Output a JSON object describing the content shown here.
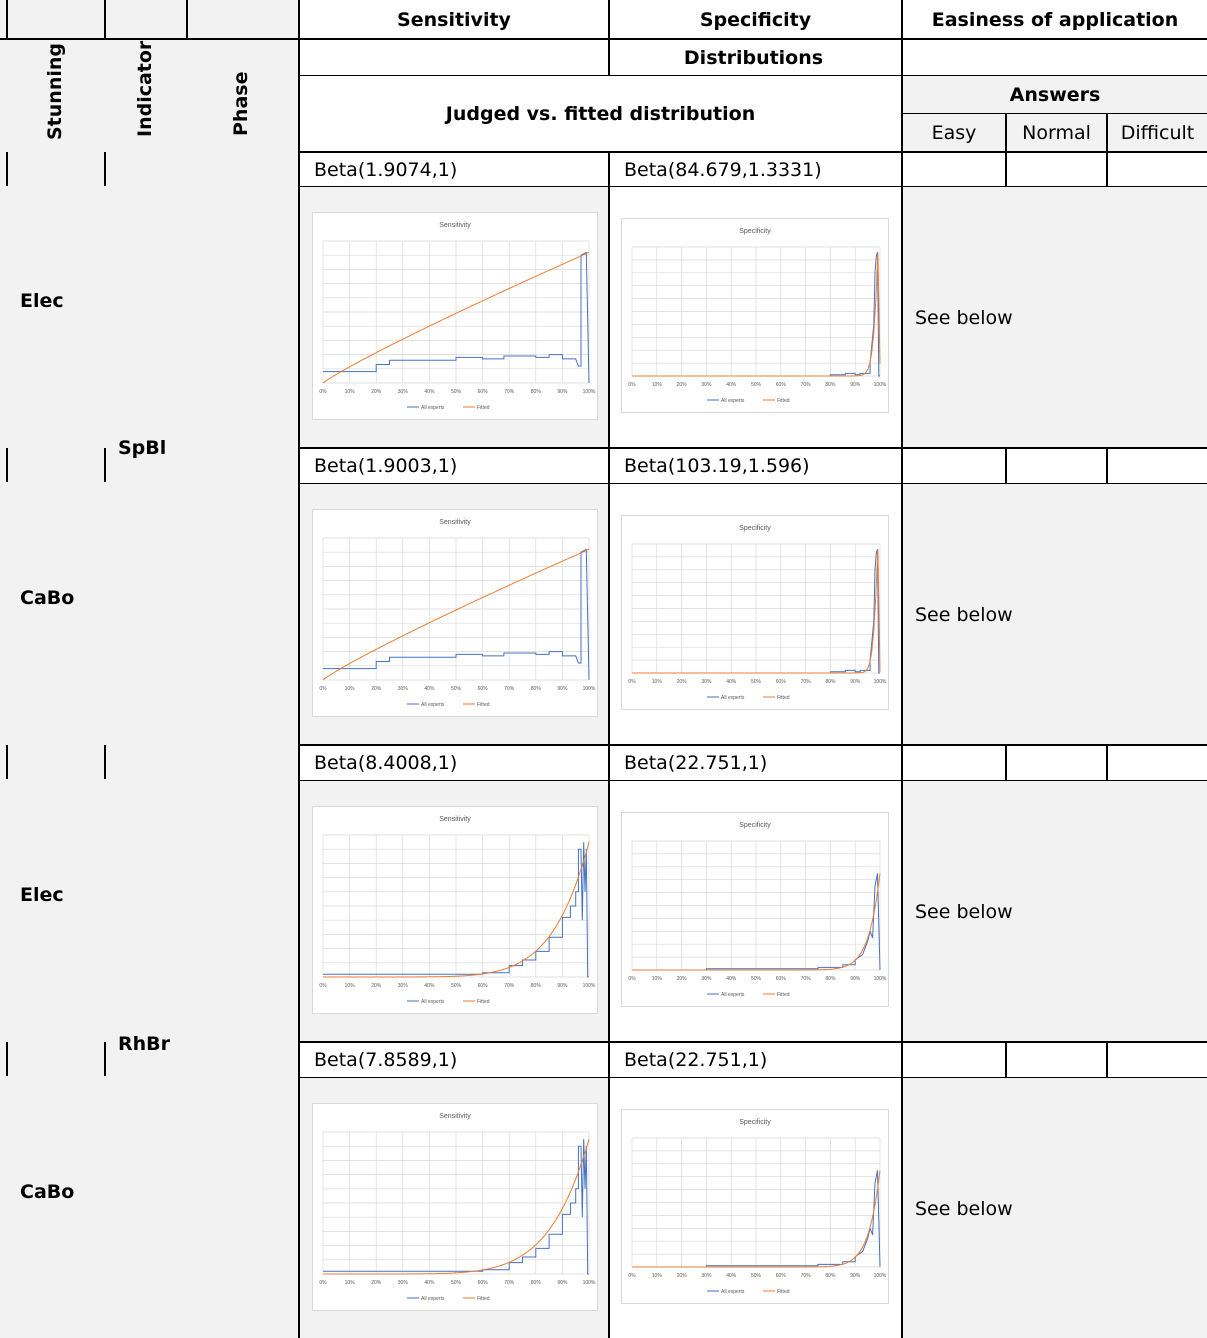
{
  "header": {
    "col1": "Stunning",
    "col2": "Indicator",
    "col3": "Phase",
    "sensitivity": "Sensitivity",
    "specificity": "Specificity",
    "easiness": "Easiness of application",
    "distributions": "Distributions",
    "judged_vs_fitted": "Judged vs. fitted distribution",
    "answers": "Answers",
    "easy": "Easy",
    "normal": "Normal",
    "difficult": "Difficult"
  },
  "rows": [
    {
      "indicator": "SpBl",
      "stunning": "Elec",
      "sens_dist": "Beta(1.9074,1)",
      "spec_dist": "Beta(84.679,1.3331)",
      "answer": "See below"
    },
    {
      "indicator": "",
      "stunning": "CaBo",
      "sens_dist": "Beta(1.9003,1)",
      "spec_dist": "Beta(103.19,1.596)",
      "answer": "See below"
    },
    {
      "indicator": "RhBr",
      "stunning": "Elec",
      "sens_dist": "Beta(8.4008,1)",
      "spec_dist": "Beta(22.751,1)",
      "answer": "See below"
    },
    {
      "indicator": "",
      "stunning": "CaBo",
      "sens_dist": "Beta(7.8589,1)",
      "spec_dist": "Beta(22.751,1)",
      "answer": "See below"
    }
  ],
  "colors": {
    "all_experts": "#4472c4",
    "fitted": "#ed7d31",
    "grid": "#d9d9d9",
    "shade": "#f2f2f2"
  },
  "chart_data": [
    {
      "type": "line",
      "title": "Sensitivity",
      "x_ticks": [
        "0%",
        "10%",
        "20%",
        "30%",
        "40%",
        "50%",
        "60%",
        "70%",
        "80%",
        "90%",
        "100%"
      ],
      "legend": [
        "All experts",
        "Fitted"
      ],
      "legend_position": "bottom",
      "grid": true,
      "series": [
        {
          "name": "All experts",
          "x": [
            0,
            0.1,
            0.2,
            0.2,
            0.25,
            0.25,
            0.4,
            0.5,
            0.5,
            0.6,
            0.6,
            0.68,
            0.68,
            0.8,
            0.8,
            0.85,
            0.85,
            0.9,
            0.9,
            0.95,
            0.96,
            0.97,
            0.97,
            0.99,
            0.99,
            1.0
          ],
          "y": [
            0.08,
            0.08,
            0.08,
            0.13,
            0.13,
            0.16,
            0.16,
            0.16,
            0.18,
            0.18,
            0.17,
            0.17,
            0.19,
            0.19,
            0.18,
            0.18,
            0.2,
            0.2,
            0.17,
            0.17,
            0.12,
            0.12,
            0.9,
            0.92,
            0.92,
            0.0
          ]
        },
        {
          "name": "Fitted",
          "function": "beta",
          "a": 1.9074,
          "b": 1
        }
      ]
    },
    {
      "type": "line",
      "title": "Specificity",
      "x_ticks": [
        "0%",
        "10%",
        "20%",
        "30%",
        "40%",
        "50%",
        "60%",
        "70%",
        "80%",
        "90%",
        "100%"
      ],
      "legend": [
        "All experts",
        "Fitted"
      ],
      "legend_position": "bottom",
      "grid": true,
      "series": [
        {
          "name": "All experts",
          "x": [
            0,
            0.8,
            0.8,
            0.86,
            0.86,
            0.9,
            0.9,
            0.92,
            0.92,
            0.96,
            0.96,
            0.975,
            0.98,
            0.985,
            0.99,
            0.995,
            1.0
          ],
          "y": [
            0.0,
            0.0,
            0.01,
            0.01,
            0.02,
            0.02,
            0.01,
            0.01,
            0.02,
            0.02,
            0.1,
            0.4,
            0.8,
            0.93,
            0.96,
            0.0,
            0.0
          ]
        },
        {
          "name": "Fitted",
          "function": "beta",
          "a": 84.679,
          "b": 1.3331
        }
      ]
    },
    {
      "type": "line",
      "title": "Sensitivity",
      "x_ticks": [
        "0%",
        "10%",
        "20%",
        "30%",
        "40%",
        "50%",
        "60%",
        "70%",
        "80%",
        "90%",
        "100%"
      ],
      "legend": [
        "All experts",
        "Fitted"
      ],
      "legend_position": "bottom",
      "grid": true,
      "series": [
        {
          "name": "All experts",
          "x": [
            0,
            0.1,
            0.2,
            0.2,
            0.25,
            0.25,
            0.4,
            0.5,
            0.5,
            0.6,
            0.6,
            0.68,
            0.68,
            0.8,
            0.8,
            0.85,
            0.85,
            0.9,
            0.9,
            0.95,
            0.96,
            0.97,
            0.97,
            0.99,
            0.99,
            1.0
          ],
          "y": [
            0.08,
            0.08,
            0.08,
            0.13,
            0.13,
            0.16,
            0.16,
            0.16,
            0.18,
            0.18,
            0.17,
            0.17,
            0.19,
            0.19,
            0.18,
            0.18,
            0.2,
            0.2,
            0.17,
            0.17,
            0.12,
            0.12,
            0.9,
            0.92,
            0.92,
            0.0
          ]
        },
        {
          "name": "Fitted",
          "function": "beta",
          "a": 1.9003,
          "b": 1
        }
      ]
    },
    {
      "type": "line",
      "title": "Specificity",
      "x_ticks": [
        "0%",
        "10%",
        "20%",
        "30%",
        "40%",
        "50%",
        "60%",
        "70%",
        "80%",
        "90%",
        "100%"
      ],
      "legend": [
        "All experts",
        "Fitted"
      ],
      "legend_position": "bottom",
      "grid": true,
      "series": [
        {
          "name": "All experts",
          "x": [
            0,
            0.8,
            0.8,
            0.86,
            0.86,
            0.9,
            0.9,
            0.92,
            0.92,
            0.96,
            0.96,
            0.975,
            0.98,
            0.985,
            0.99,
            0.995,
            1.0
          ],
          "y": [
            0.0,
            0.0,
            0.01,
            0.01,
            0.02,
            0.02,
            0.01,
            0.01,
            0.02,
            0.02,
            0.1,
            0.4,
            0.8,
            0.93,
            0.96,
            0.0,
            0.0
          ]
        },
        {
          "name": "Fitted",
          "function": "beta",
          "a": 103.19,
          "b": 1.596
        }
      ]
    },
    {
      "type": "line",
      "title": "Sensitivity",
      "x_ticks": [
        "0%",
        "10%",
        "20%",
        "30%",
        "40%",
        "50%",
        "60%",
        "70%",
        "80%",
        "90%",
        "100%"
      ],
      "legend": [
        "All experts",
        "Fitted"
      ],
      "legend_position": "bottom",
      "grid": true,
      "series": [
        {
          "name": "All experts",
          "x": [
            0,
            0.6,
            0.6,
            0.7,
            0.7,
            0.75,
            0.75,
            0.8,
            0.8,
            0.85,
            0.85,
            0.9,
            0.9,
            0.93,
            0.93,
            0.95,
            0.95,
            0.96,
            0.96,
            0.97,
            0.975,
            0.98,
            0.985,
            0.99,
            0.995,
            1.0
          ],
          "y": [
            0.02,
            0.02,
            0.03,
            0.03,
            0.08,
            0.08,
            0.12,
            0.12,
            0.18,
            0.18,
            0.28,
            0.28,
            0.42,
            0.42,
            0.5,
            0.5,
            0.6,
            0.6,
            0.9,
            0.9,
            0.4,
            0.95,
            0.6,
            0.9,
            0.0,
            0.0
          ]
        },
        {
          "name": "Fitted",
          "function": "beta",
          "a": 8.4008,
          "b": 1
        }
      ]
    },
    {
      "type": "line",
      "title": "Specificity",
      "x_ticks": [
        "0%",
        "10%",
        "20%",
        "30%",
        "40%",
        "50%",
        "60%",
        "70%",
        "80%",
        "90%",
        "100%"
      ],
      "legend": [
        "All experts",
        "Fitted"
      ],
      "legend_position": "bottom",
      "grid": true,
      "series": [
        {
          "name": "All experts",
          "x": [
            0,
            0.3,
            0.3,
            0.75,
            0.75,
            0.85,
            0.85,
            0.9,
            0.9,
            0.93,
            0.95,
            0.96,
            0.97,
            0.98,
            0.99,
            1.0
          ],
          "y": [
            0.0,
            0.0,
            0.01,
            0.01,
            0.02,
            0.02,
            0.04,
            0.04,
            0.08,
            0.12,
            0.22,
            0.3,
            0.25,
            0.65,
            0.75,
            0.0
          ]
        },
        {
          "name": "Fitted",
          "function": "beta",
          "a": 22.751,
          "b": 1
        }
      ]
    },
    {
      "type": "line",
      "title": "Sensitivity",
      "x_ticks": [
        "0%",
        "10%",
        "20%",
        "30%",
        "40%",
        "50%",
        "60%",
        "70%",
        "80%",
        "90%",
        "100%"
      ],
      "legend": [
        "All experts",
        "Fitted"
      ],
      "legend_position": "bottom",
      "grid": true,
      "series": [
        {
          "name": "All experts",
          "x": [
            0,
            0.6,
            0.6,
            0.7,
            0.7,
            0.75,
            0.75,
            0.8,
            0.8,
            0.85,
            0.85,
            0.9,
            0.9,
            0.93,
            0.93,
            0.95,
            0.95,
            0.96,
            0.96,
            0.97,
            0.975,
            0.98,
            0.985,
            0.99,
            0.995,
            1.0
          ],
          "y": [
            0.02,
            0.02,
            0.03,
            0.03,
            0.08,
            0.08,
            0.12,
            0.12,
            0.18,
            0.18,
            0.28,
            0.28,
            0.42,
            0.42,
            0.5,
            0.5,
            0.6,
            0.6,
            0.9,
            0.9,
            0.4,
            0.95,
            0.6,
            0.9,
            0.0,
            0.0
          ]
        },
        {
          "name": "Fitted",
          "function": "beta",
          "a": 7.8589,
          "b": 1
        }
      ]
    },
    {
      "type": "line",
      "title": "Specificity",
      "x_ticks": [
        "0%",
        "10%",
        "20%",
        "30%",
        "40%",
        "50%",
        "60%",
        "70%",
        "80%",
        "90%",
        "100%"
      ],
      "legend": [
        "All experts",
        "Fitted"
      ],
      "legend_position": "bottom",
      "grid": true,
      "series": [
        {
          "name": "All experts",
          "x": [
            0,
            0.3,
            0.3,
            0.75,
            0.75,
            0.85,
            0.85,
            0.9,
            0.9,
            0.93,
            0.95,
            0.96,
            0.97,
            0.98,
            0.99,
            1.0
          ],
          "y": [
            0.0,
            0.0,
            0.01,
            0.01,
            0.02,
            0.02,
            0.04,
            0.04,
            0.08,
            0.12,
            0.22,
            0.3,
            0.25,
            0.65,
            0.75,
            0.0
          ]
        },
        {
          "name": "Fitted",
          "function": "beta",
          "a": 22.751,
          "b": 1
        }
      ]
    }
  ]
}
